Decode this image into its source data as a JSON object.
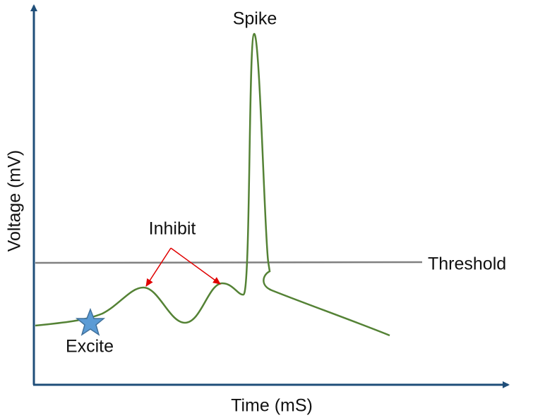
{
  "labels": {
    "spike": "Spike",
    "inhibit": "Inhibit",
    "threshold": "Threshold",
    "excite": "Excite"
  },
  "axes": {
    "x_label": "Time (mS)",
    "y_label": "Voltage (mV)"
  }
}
